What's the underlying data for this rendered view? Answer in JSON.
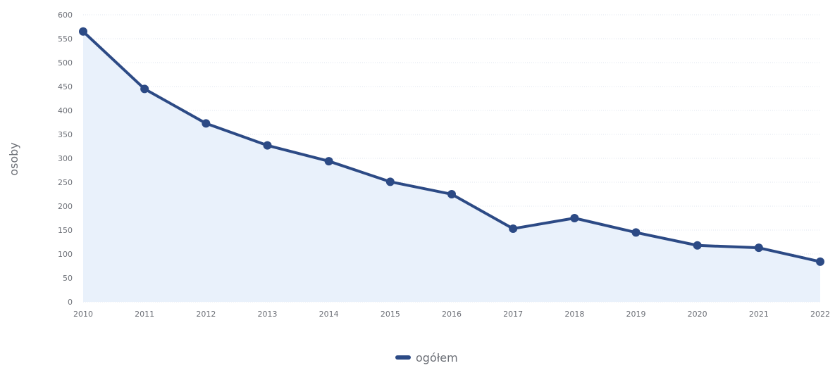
{
  "chart_data": {
    "type": "area",
    "x": [
      "2010",
      "2011",
      "2012",
      "2013",
      "2014",
      "2015",
      "2016",
      "2017",
      "2018",
      "2019",
      "2020",
      "2021",
      "2022"
    ],
    "series": [
      {
        "name": "ogółem",
        "values": [
          565,
          445,
          373,
          327,
          294,
          251,
          225,
          153,
          175,
          145,
          118,
          113,
          84
        ]
      }
    ],
    "ylabel": "osoby",
    "ylim": [
      0,
      600
    ],
    "yticks": [
      "0",
      "50",
      "100",
      "150",
      "200",
      "250",
      "300",
      "350",
      "400",
      "450",
      "500",
      "550",
      "600"
    ],
    "grid": true,
    "legend_position": "bottom-center",
    "colors": {
      "line": "#2c4a85",
      "area": "#e9f1fb",
      "grid": "#dfe6ef",
      "text": "#6d7077"
    }
  }
}
